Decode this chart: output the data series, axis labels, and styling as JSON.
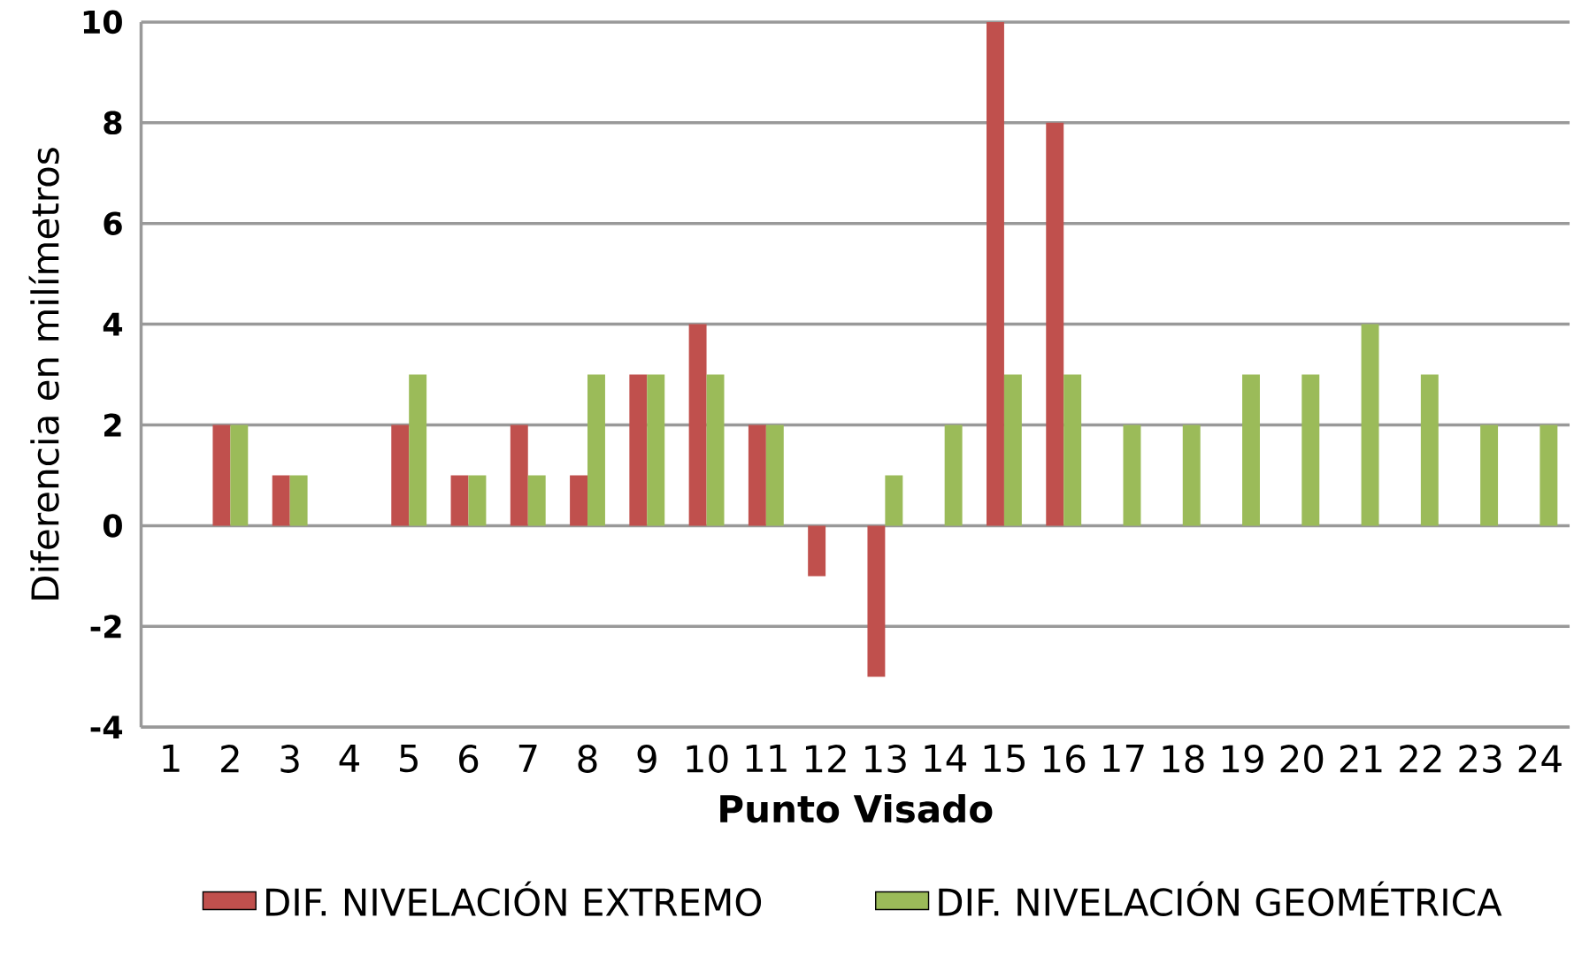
{
  "chart_data": {
    "type": "bar",
    "xlabel": "Punto Visado",
    "ylabel": "Diferencia en milímetros",
    "categories": [
      "1",
      "2",
      "3",
      "4",
      "5",
      "6",
      "7",
      "8",
      "9",
      "10",
      "11",
      "12",
      "13",
      "14",
      "15",
      "16",
      "17",
      "18",
      "19",
      "20",
      "21",
      "22",
      "23",
      "24"
    ],
    "series": [
      {
        "name": "DIF. NIVELACIÓN EXTREMO",
        "color": "#c0504d",
        "values": [
          0,
          2,
          1,
          0,
          2,
          1,
          2,
          1,
          3,
          4,
          2,
          -1,
          -3,
          0,
          10,
          8,
          0,
          0,
          0,
          0,
          0,
          0,
          0,
          0
        ]
      },
      {
        "name": "DIF. NIVELACIÓN GEOMÉTRICA",
        "color": "#9bbb59",
        "values": [
          0,
          2,
          1,
          0,
          3,
          1,
          1,
          3,
          3,
          3,
          2,
          0,
          1,
          2,
          3,
          3,
          2,
          2,
          3,
          3,
          4,
          3,
          2,
          2
        ]
      }
    ],
    "ylim": [
      -4,
      10
    ],
    "yticks": [
      -4,
      -2,
      0,
      2,
      4,
      6,
      8,
      10
    ],
    "grid": "y",
    "legend": "bottom"
  }
}
